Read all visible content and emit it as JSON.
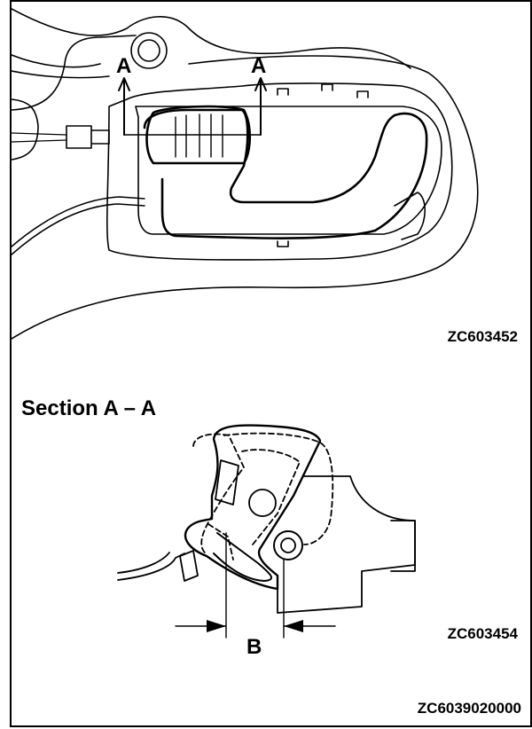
{
  "top_view": {
    "drawing_code": "ZC603452",
    "section_marker_left": "A",
    "section_marker_right": "A"
  },
  "section_view": {
    "title": "Section A – A",
    "dimension_label": "B",
    "drawing_code": "ZC603454"
  },
  "footer": {
    "figure_code": "ZC6039020000"
  },
  "colors": {
    "line": "#000000",
    "background": "#ffffff"
  }
}
